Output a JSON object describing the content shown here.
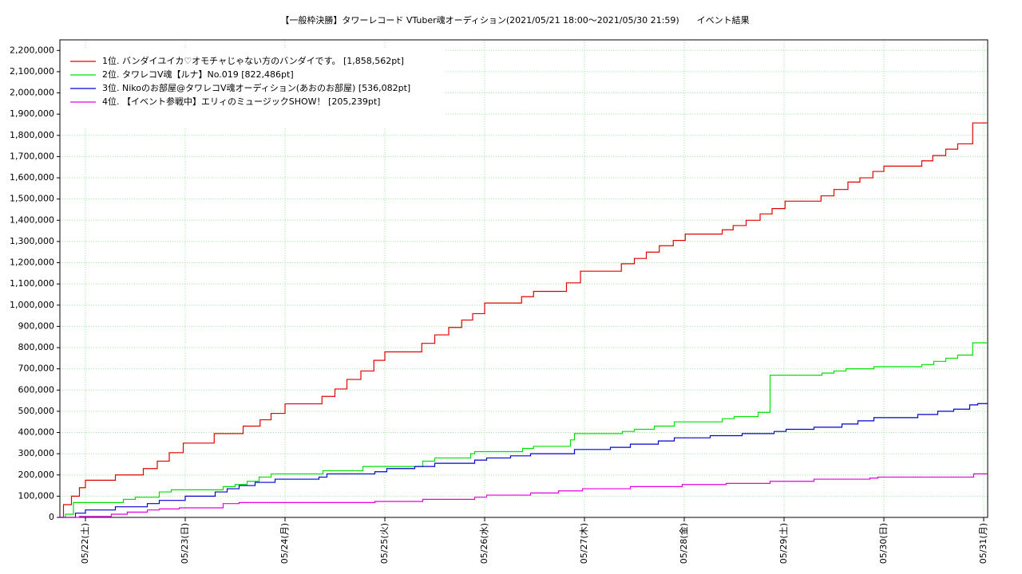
{
  "chart_data": {
    "type": "line",
    "step": "after",
    "title": "【一般枠決勝】タワーレコード VTuber魂オーディション(2021/05/21 18:00～2021/05/30 21:59)　　イベント結果",
    "grid": true,
    "legend": "upper left",
    "xlim": [
      -0.256,
      9.04
    ],
    "ylim": [
      0,
      2250000
    ],
    "xticks": [
      {
        "value": 0,
        "label": "05/22(土)"
      },
      {
        "value": 1,
        "label": "05/23(日)"
      },
      {
        "value": 2,
        "label": "05/24(月)"
      },
      {
        "value": 3,
        "label": "05/25(火)"
      },
      {
        "value": 4,
        "label": "05/26(水)"
      },
      {
        "value": 5,
        "label": "05/27(木)"
      },
      {
        "value": 6,
        "label": "05/28(金)"
      },
      {
        "value": 7,
        "label": "05/29(土)"
      },
      {
        "value": 8,
        "label": "05/30(日)"
      },
      {
        "value": 9,
        "label": "05/31(月)"
      }
    ],
    "yticks": [
      0,
      {
        "value": 100000,
        "label": "100,000"
      },
      {
        "value": 200000,
        "label": "200,000"
      },
      {
        "value": 300000,
        "label": "300,000"
      },
      {
        "value": 400000,
        "label": "400,000"
      },
      {
        "value": 500000,
        "label": "500,000"
      },
      {
        "value": 600000,
        "label": "600,000"
      },
      {
        "value": 700000,
        "label": "700,000"
      },
      {
        "value": 800000,
        "label": "800,000"
      },
      {
        "value": 900000,
        "label": "900,000"
      },
      {
        "value": 1000000,
        "label": "1,000,000"
      },
      {
        "value": 1100000,
        "label": "1,100,000"
      },
      {
        "value": 1200000,
        "label": "1,200,000"
      },
      {
        "value": 1300000,
        "label": "1,300,000"
      },
      {
        "value": 1400000,
        "label": "1,400,000"
      },
      {
        "value": 1500000,
        "label": "1,500,000"
      },
      {
        "value": 1600000,
        "label": "1,600,000"
      },
      {
        "value": 1700000,
        "label": "1,700,000"
      },
      {
        "value": 1800000,
        "label": "1,800,000"
      },
      {
        "value": 1900000,
        "label": "1,900,000"
      },
      {
        "value": 2000000,
        "label": "2,000,000"
      },
      {
        "value": 2100000,
        "label": "2,100,000"
      },
      {
        "value": 2200000,
        "label": "2,200,000"
      }
    ],
    "series": [
      {
        "name": "1位. バンダイユイカ♡オモチャじゃない方のバンダイです。 [1,858,562pt]",
        "color": "#e00000",
        "x": [
          -0.256,
          -0.22,
          -0.14,
          -0.06,
          0.0,
          0.3,
          0.58,
          0.72,
          0.84,
          0.98,
          1.29,
          1.58,
          1.75,
          1.86,
          2.0,
          2.37,
          2.5,
          2.62,
          2.76,
          2.89,
          3.0,
          3.37,
          3.5,
          3.64,
          3.77,
          3.88,
          4.0,
          4.37,
          4.49,
          4.82,
          4.96,
          5.37,
          5.5,
          5.62,
          5.75,
          5.89,
          6.01,
          6.38,
          6.49,
          6.62,
          6.76,
          6.88,
          7.01,
          7.37,
          7.5,
          7.64,
          7.76,
          7.89,
          8.0,
          8.38,
          8.49,
          8.62,
          8.74,
          8.89
        ],
        "values": [
          0,
          60000,
          100000,
          140000,
          175000,
          200000,
          230000,
          265000,
          305000,
          350000,
          395000,
          430000,
          460000,
          490000,
          535000,
          570000,
          605000,
          650000,
          690000,
          740000,
          780000,
          820000,
          860000,
          895000,
          930000,
          960000,
          1010000,
          1040000,
          1065000,
          1105000,
          1160000,
          1195000,
          1220000,
          1250000,
          1280000,
          1305000,
          1335000,
          1355000,
          1375000,
          1400000,
          1430000,
          1455000,
          1490000,
          1515000,
          1545000,
          1580000,
          1600000,
          1630000,
          1655000,
          1680000,
          1705000,
          1735000,
          1760000,
          1858562
        ]
      },
      {
        "name": "2位. タワレコV魂【ルナ】No.019 [822,486pt]",
        "color": "#00e000",
        "x": [
          -0.256,
          -0.2,
          -0.12,
          0.38,
          0.5,
          0.74,
          0.86,
          1.38,
          1.5,
          1.62,
          1.74,
          1.86,
          2.38,
          2.78,
          3.38,
          3.5,
          3.86,
          3.9,
          4.38,
          4.49,
          4.86,
          4.9,
          5.38,
          5.5,
          5.7,
          5.9,
          6.38,
          6.5,
          6.74,
          6.86,
          7.38,
          7.5,
          7.62,
          7.9,
          8.38,
          8.5,
          8.62,
          8.74,
          8.89
        ],
        "values": [
          0,
          15000,
          70000,
          85000,
          95000,
          120000,
          130000,
          145000,
          155000,
          170000,
          190000,
          205000,
          220000,
          240000,
          265000,
          280000,
          300000,
          310000,
          325000,
          335000,
          365000,
          395000,
          405000,
          415000,
          430000,
          450000,
          465000,
          475000,
          495000,
          670000,
          680000,
          690000,
          700000,
          710000,
          720000,
          735000,
          750000,
          765000,
          822486
        ]
      },
      {
        "name": "3位. Nikoのお部屋@タワレコV魂オーディション(あおのお部屋) [536,082pt]",
        "color": "#0000d0",
        "x": [
          -0.256,
          -0.1,
          0.0,
          0.3,
          0.62,
          0.74,
          1.0,
          1.3,
          1.42,
          1.54,
          1.7,
          1.9,
          2.34,
          2.42,
          2.9,
          3.02,
          3.3,
          3.5,
          3.9,
          4.02,
          4.26,
          4.46,
          4.9,
          5.26,
          5.46,
          5.74,
          5.9,
          6.26,
          6.58,
          6.9,
          7.02,
          7.3,
          7.58,
          7.74,
          7.9,
          8.34,
          8.54,
          8.7,
          8.86,
          8.94
        ],
        "values": [
          0,
          20000,
          35000,
          50000,
          65000,
          80000,
          100000,
          120000,
          135000,
          150000,
          165000,
          180000,
          190000,
          205000,
          215000,
          230000,
          240000,
          255000,
          270000,
          280000,
          290000,
          300000,
          320000,
          330000,
          345000,
          360000,
          375000,
          385000,
          395000,
          405000,
          415000,
          425000,
          440000,
          455000,
          470000,
          485000,
          500000,
          510000,
          530000,
          536082
        ]
      },
      {
        "name": "4位. 【イベント参戦中】エリィのミュージックSHOW！ [205,239pt]",
        "color": "#e000e0",
        "x": [
          -0.256,
          -0.06,
          0.26,
          0.42,
          0.62,
          0.74,
          0.94,
          1.38,
          1.54,
          2.9,
          3.38,
          3.9,
          4.02,
          4.46,
          4.74,
          4.98,
          5.46,
          5.98,
          6.42,
          6.86,
          7.3,
          7.86,
          7.94,
          8.9
        ],
        "values": [
          0,
          5000,
          15000,
          25000,
          35000,
          40000,
          45000,
          65000,
          70000,
          75000,
          85000,
          95000,
          105000,
          115000,
          125000,
          135000,
          145000,
          155000,
          160000,
          170000,
          180000,
          185000,
          190000,
          205239
        ]
      }
    ]
  }
}
